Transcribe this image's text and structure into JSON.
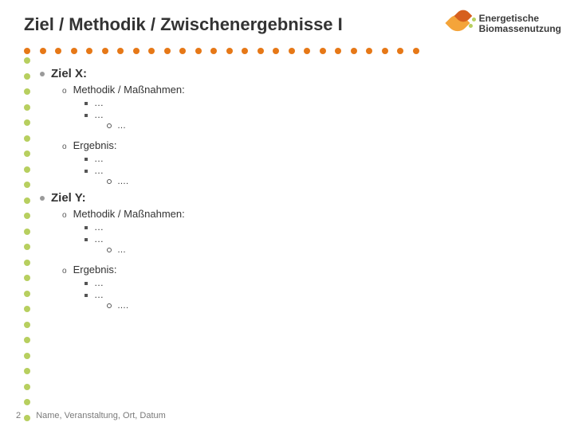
{
  "title": "Ziel / Methodik / Zwischenergebnisse I",
  "brand": {
    "line1": "Energetische",
    "line2": "Biomassenutzung"
  },
  "ellipsis": "…",
  "ellipsis4": "….",
  "goals": [
    {
      "label": "Ziel X:",
      "method_label": "Methodik / Maßnahmen:",
      "result_label": "Ergebnis:"
    },
    {
      "label": "Ziel Y:",
      "method_label": "Methodik / Maßnahmen:",
      "result_label": "Ergebnis:"
    }
  ],
  "footer": {
    "page": "2",
    "text": "Name, Veranstaltung, Ort, Datum"
  },
  "decor": {
    "h_dots": 26,
    "h_color": "#e67817",
    "v_dots": 24,
    "v_color": "#b7cf5f"
  },
  "colors": {
    "title": "#333333",
    "body": "#333333",
    "footer": "#7a7a7a",
    "background": "#ffffff"
  },
  "typography": {
    "title_size_pt": 17,
    "lvl0_size_pt": 11,
    "lvl1_size_pt": 10,
    "lvl2_size_pt": 9,
    "lvl3_size_pt": 8,
    "footer_size_pt": 8,
    "font_family": "Arial"
  }
}
